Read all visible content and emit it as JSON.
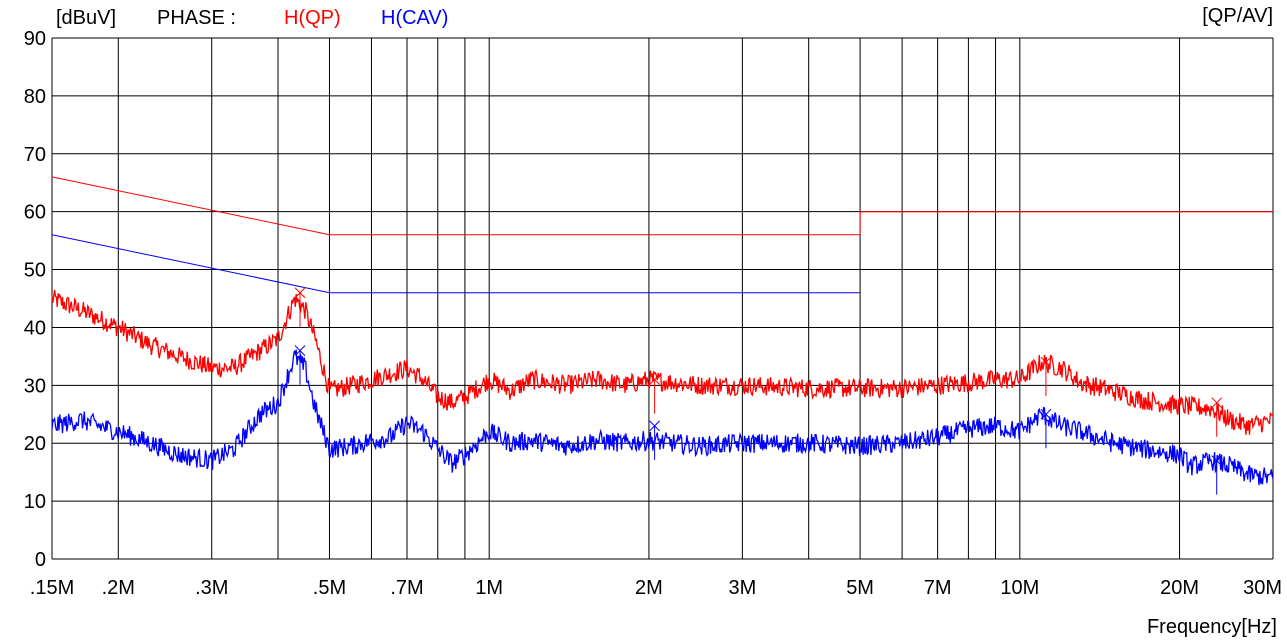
{
  "header": {
    "unit": "[dBuV]",
    "phase_label": "PHASE :",
    "detector_label": "[QP/AV]"
  },
  "colors": {
    "qp": "#ff0000",
    "cav": "#0000ff",
    "grid": "#000000"
  },
  "chart_data": {
    "type": "line",
    "x_scale": "log",
    "xlabel": "Frequency[Hz]",
    "ylabel": "[dBuV]",
    "xlim": [
      0.15,
      30
    ],
    "ylim": [
      0,
      90
    ],
    "y_ticks": [
      0,
      10,
      20,
      30,
      40,
      50,
      60,
      70,
      80,
      90
    ],
    "x_ticks": [
      {
        "value": 0.15,
        "label": ".15M"
      },
      {
        "value": 0.2,
        "label": ".2M"
      },
      {
        "value": 0.3,
        "label": ".3M"
      },
      {
        "value": 0.5,
        "label": ".5M"
      },
      {
        "value": 0.7,
        "label": ".7M"
      },
      {
        "value": 1,
        "label": "1M"
      },
      {
        "value": 2,
        "label": "2M"
      },
      {
        "value": 3,
        "label": "3M"
      },
      {
        "value": 5,
        "label": "5M"
      },
      {
        "value": 7,
        "label": "7M"
      },
      {
        "value": 10,
        "label": "10M"
      },
      {
        "value": 20,
        "label": "20M"
      },
      {
        "value": 30,
        "label": "30M"
      }
    ],
    "x_grid": [
      0.15,
      0.2,
      0.3,
      0.4,
      0.5,
      0.6,
      0.7,
      0.8,
      0.9,
      1,
      2,
      3,
      4,
      5,
      6,
      7,
      8,
      9,
      10,
      20,
      30
    ],
    "grid": true,
    "limits": [
      {
        "series": "H(QP)",
        "x": [
          0.15,
          0.5,
          0.5,
          5,
          5,
          30
        ],
        "y": [
          66,
          56,
          56,
          56,
          60,
          60
        ]
      },
      {
        "series": "H(CAV)",
        "x": [
          0.15,
          0.5,
          0.5,
          5
        ],
        "y": [
          56,
          46,
          46,
          46
        ]
      }
    ],
    "series": [
      {
        "name": "H(QP)",
        "x": [
          0.15,
          0.17,
          0.2,
          0.23,
          0.26,
          0.3,
          0.33,
          0.37,
          0.4,
          0.43,
          0.45,
          0.47,
          0.5,
          0.55,
          0.6,
          0.65,
          0.7,
          0.75,
          0.8,
          0.85,
          0.9,
          1.0,
          1.1,
          1.2,
          1.4,
          1.6,
          1.8,
          2.0,
          2.5,
          3,
          4,
          5,
          6,
          7,
          8,
          9,
          10,
          11,
          12,
          13,
          15,
          17,
          20,
          23,
          25,
          27,
          30
        ],
        "y": [
          45,
          43,
          40,
          37,
          35,
          33,
          33,
          36,
          38,
          45,
          43,
          38,
          29,
          30,
          31,
          32,
          33,
          31,
          28,
          27,
          28,
          31,
          29,
          31,
          30,
          31,
          30,
          31,
          30,
          30,
          29.5,
          29.5,
          29.5,
          30,
          30.5,
          31,
          31,
          34,
          33,
          30.5,
          29,
          27.5,
          26.5,
          26,
          24,
          23,
          24
        ]
      },
      {
        "name": "H(CAV)",
        "x": [
          0.15,
          0.17,
          0.2,
          0.23,
          0.26,
          0.3,
          0.33,
          0.37,
          0.4,
          0.43,
          0.45,
          0.47,
          0.5,
          0.55,
          0.6,
          0.65,
          0.7,
          0.75,
          0.8,
          0.85,
          0.9,
          1.0,
          1.1,
          1.2,
          1.4,
          1.6,
          1.8,
          2.0,
          2.5,
          3,
          4,
          5,
          6,
          7,
          8,
          9,
          10,
          11,
          12,
          13,
          15,
          17,
          20,
          21,
          23,
          25,
          27,
          30
        ],
        "y": [
          23,
          24,
          22,
          20,
          18,
          17,
          19,
          25,
          27,
          35,
          33,
          26,
          19,
          19.5,
          20.5,
          21,
          23.5,
          22,
          19,
          16.5,
          18,
          22,
          20,
          20.5,
          19.5,
          20.5,
          20,
          20.5,
          19.5,
          20,
          20,
          19.5,
          20,
          21,
          22.5,
          23,
          22,
          25,
          23,
          22,
          20,
          19,
          18,
          16,
          17,
          16,
          14.5,
          14
        ]
      }
    ],
    "markers": [
      {
        "series": "H(QP)",
        "x": 0.44,
        "y": 46
      },
      {
        "series": "H(QP)",
        "x": 2.05,
        "y": 31
      },
      {
        "series": "H(QP)",
        "x": 11.2,
        "y": 34
      },
      {
        "series": "H(QP)",
        "x": 23.5,
        "y": 27
      },
      {
        "series": "H(CAV)",
        "x": 0.44,
        "y": 36
      },
      {
        "series": "H(CAV)",
        "x": 2.05,
        "y": 23
      },
      {
        "series": "H(CAV)",
        "x": 11.2,
        "y": 25
      },
      {
        "series": "H(CAV)",
        "x": 23.5,
        "y": 17
      }
    ]
  }
}
